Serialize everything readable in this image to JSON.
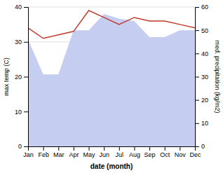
{
  "chart_data": {
    "type": "line",
    "categories": [
      "Jan",
      "Feb",
      "Mar",
      "Apr",
      "May",
      "Jun",
      "Jul",
      "Aug",
      "Sep",
      "Oct",
      "Nov",
      "Dec"
    ],
    "series": [
      {
        "type": "area",
        "axis": "y2",
        "color": "#c5cdf0",
        "values": [
          46,
          31,
          31,
          50,
          50,
          57,
          55,
          54,
          47,
          47,
          50,
          50
        ]
      },
      {
        "type": "line",
        "color": "#c0392b",
        "values": [
          34,
          31,
          32,
          33,
          39,
          37,
          35,
          37,
          36,
          36,
          35,
          34
        ]
      }
    ],
    "x_label": "date (month)",
    "y_label": "max temp (C)",
    "y2_label": "med. precipitation (kg/m2)",
    "ylim": [
      0,
      40
    ],
    "yticks": [
      0,
      10,
      20,
      30,
      40
    ],
    "y2lim": [
      0,
      60
    ],
    "y2ticks": [
      0,
      10,
      20,
      30,
      40,
      50,
      60
    ],
    "grid": true
  }
}
